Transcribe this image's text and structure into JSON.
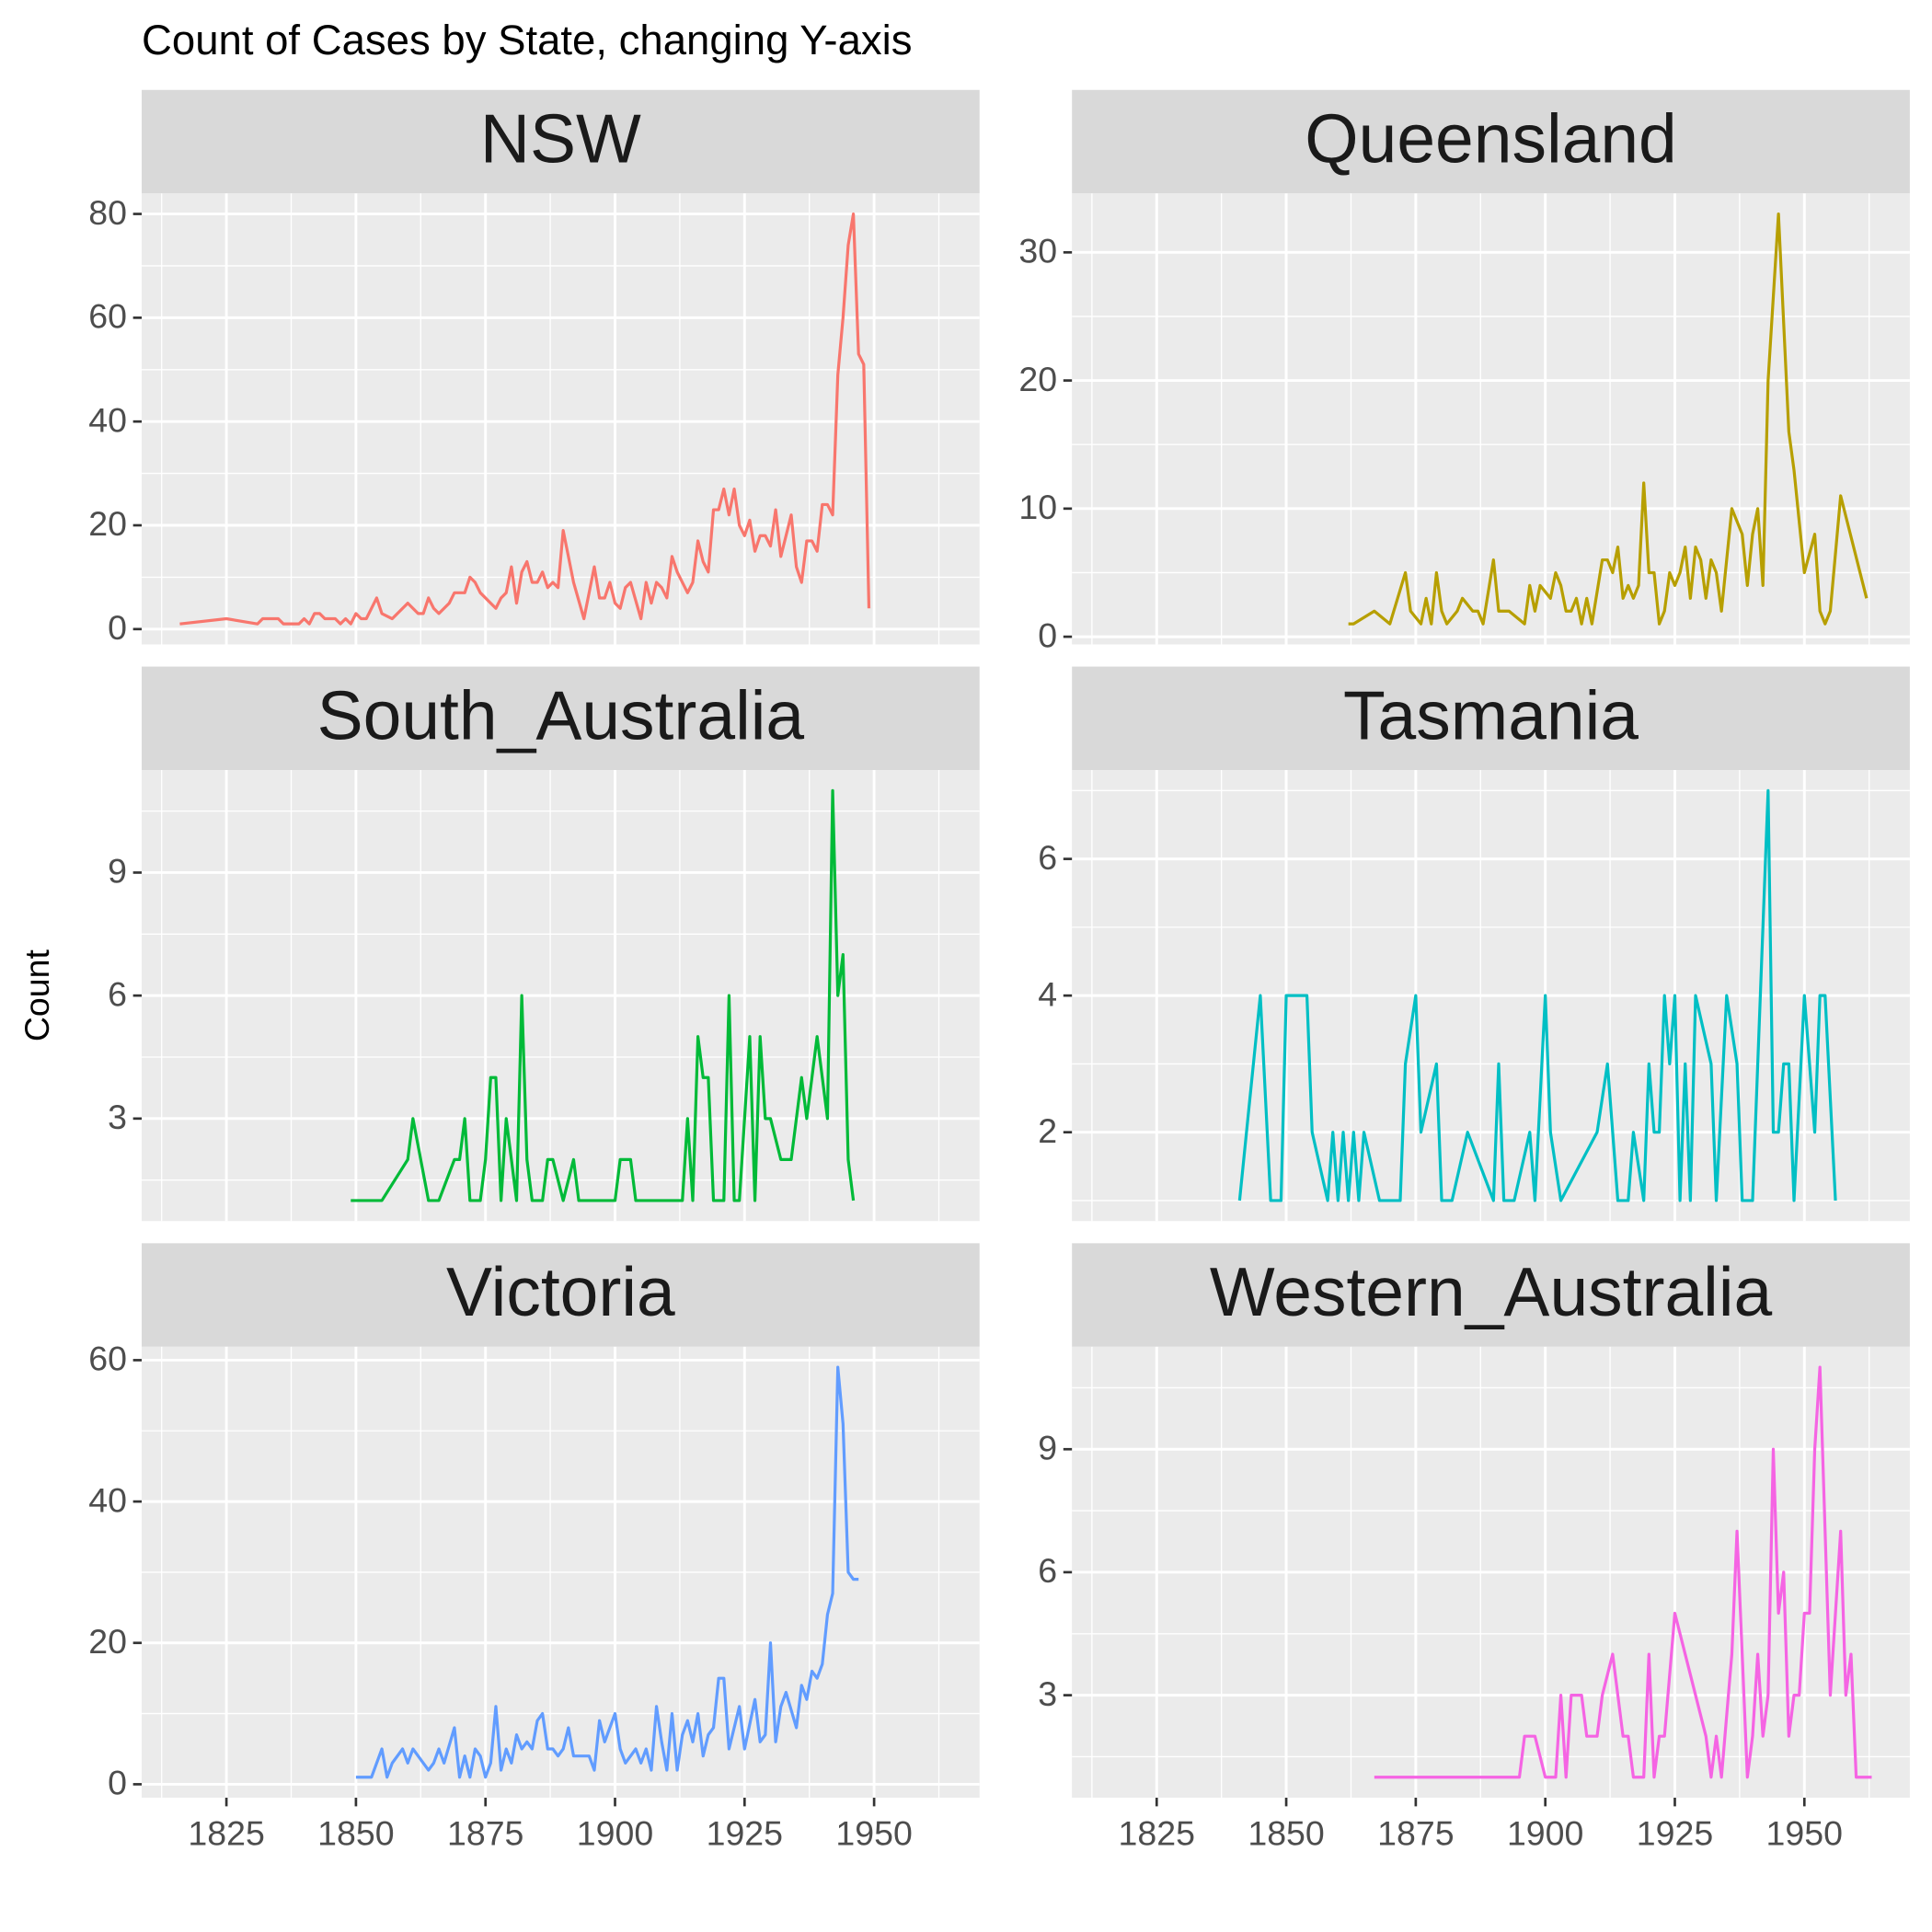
{
  "title": "Count of Cases by State, changing Y-axis",
  "ylabel": "Count",
  "chart_data": [
    {
      "type": "line",
      "title": "NSW",
      "color": "#F8766D",
      "x": [
        1816,
        1825,
        1831,
        1832,
        1835,
        1836,
        1839,
        1840,
        1841,
        1842,
        1843,
        1844,
        1846,
        1847,
        1848,
        1849,
        1850,
        1851,
        1852,
        1854,
        1855,
        1857,
        1859,
        1860,
        1862,
        1863,
        1864,
        1865,
        1866,
        1868,
        1869,
        1871,
        1872,
        1873,
        1874,
        1876,
        1877,
        1878,
        1879,
        1880,
        1881,
        1882,
        1883,
        1884,
        1885,
        1886,
        1887,
        1888,
        1889,
        1890,
        1891,
        1892,
        1894,
        1896,
        1897,
        1898,
        1899,
        1900,
        1901,
        1902,
        1903,
        1905,
        1906,
        1907,
        1908,
        1909,
        1910,
        1911,
        1912,
        1913,
        1914,
        1915,
        1916,
        1917,
        1918,
        1919,
        1920,
        1921,
        1922,
        1923,
        1924,
        1925,
        1926,
        1927,
        1928,
        1929,
        1930,
        1931,
        1932,
        1934,
        1935,
        1936,
        1937,
        1938,
        1939,
        1940,
        1941,
        1942,
        1943,
        1944,
        1945,
        1946,
        1947,
        1948,
        1949
      ],
      "values": [
        1,
        2,
        1,
        2,
        2,
        1,
        1,
        2,
        1,
        3,
        3,
        2,
        2,
        1,
        2,
        1,
        3,
        2,
        2,
        6,
        3,
        2,
        4,
        5,
        3,
        3,
        6,
        4,
        3,
        5,
        7,
        7,
        10,
        9,
        7,
        5,
        4,
        6,
        7,
        12,
        5,
        11,
        13,
        9,
        9,
        11,
        8,
        9,
        8,
        19,
        14,
        9,
        2,
        12,
        6,
        6,
        9,
        5,
        4,
        8,
        9,
        2,
        9,
        5,
        9,
        8,
        6,
        14,
        11,
        9,
        7,
        9,
        17,
        13,
        11,
        23,
        23,
        27,
        22,
        27,
        20,
        18,
        21,
        15,
        18,
        18,
        16,
        23,
        14,
        22,
        12,
        9,
        17,
        17,
        15,
        24,
        24,
        22,
        49,
        60,
        74,
        80,
        53,
        51,
        4
      ],
      "xlim": [
        1808.65,
        1970.35
      ],
      "xticks": [
        1825,
        1850,
        1875,
        1900,
        1925,
        1950
      ],
      "ylim": [
        -2.95,
        83.95
      ],
      "yticks": [
        0,
        20,
        40,
        60,
        80
      ]
    },
    {
      "type": "line",
      "title": "Queensland",
      "color": "#B79F00",
      "x": [
        1862,
        1863,
        1867,
        1870,
        1873,
        1874,
        1876,
        1877,
        1878,
        1879,
        1880,
        1881,
        1883,
        1884,
        1886,
        1887,
        1888,
        1890,
        1891,
        1893,
        1896,
        1897,
        1898,
        1899,
        1901,
        1902,
        1903,
        1904,
        1905,
        1906,
        1907,
        1908,
        1909,
        1911,
        1912,
        1913,
        1914,
        1915,
        1916,
        1917,
        1918,
        1919,
        1920,
        1921,
        1922,
        1923,
        1924,
        1925,
        1926,
        1927,
        1928,
        1929,
        1930,
        1931,
        1932,
        1933,
        1934,
        1936,
        1938,
        1939,
        1940,
        1941,
        1942,
        1943,
        1945,
        1947,
        1948,
        1950,
        1952,
        1953,
        1954,
        1955,
        1957,
        1962
      ],
      "values": [
        1,
        1,
        2,
        1,
        5,
        2,
        1,
        3,
        1,
        5,
        2,
        1,
        2,
        3,
        2,
        2,
        1,
        6,
        2,
        2,
        1,
        4,
        2,
        4,
        3,
        5,
        4,
        2,
        2,
        3,
        1,
        3,
        1,
        6,
        6,
        5,
        7,
        3,
        4,
        3,
        4,
        12,
        5,
        5,
        1,
        2,
        5,
        4,
        5,
        7,
        3,
        7,
        6,
        3,
        6,
        5,
        2,
        10,
        8,
        4,
        8,
        10,
        4,
        20,
        33,
        16,
        13,
        5,
        8,
        2,
        1,
        2,
        11,
        3
      ],
      "xlim": [
        1808.65,
        1970.35
      ],
      "xticks": [
        1825,
        1850,
        1875,
        1900,
        1925,
        1950
      ],
      "ylim": [
        -0.6,
        34.6
      ],
      "yticks": [
        0,
        10,
        20,
        30
      ]
    },
    {
      "type": "line",
      "title": "South_Australia",
      "color": "#00BA38",
      "x": [
        1849,
        1855,
        1860,
        1861,
        1864,
        1866,
        1869,
        1870,
        1871,
        1872,
        1874,
        1875,
        1876,
        1877,
        1878,
        1879,
        1880,
        1881,
        1882,
        1883,
        1884,
        1886,
        1887,
        1888,
        1890,
        1892,
        1893,
        1897,
        1900,
        1901,
        1903,
        1904,
        1913,
        1914,
        1915,
        1916,
        1917,
        1918,
        1919,
        1921,
        1922,
        1923,
        1924,
        1926,
        1927,
        1928,
        1929,
        1930,
        1932,
        1934,
        1936,
        1937,
        1939,
        1941,
        1942,
        1943,
        1944,
        1945,
        1946
      ],
      "values": [
        1,
        1,
        2,
        3,
        1,
        1,
        2,
        2,
        3,
        1,
        1,
        2,
        4,
        4,
        1,
        3,
        2,
        1,
        6,
        2,
        1,
        1,
        2,
        2,
        1,
        2,
        1,
        1,
        1,
        2,
        2,
        1,
        1,
        3,
        1,
        5,
        4,
        4,
        1,
        1,
        6,
        1,
        1,
        5,
        1,
        5,
        3,
        3,
        2,
        2,
        4,
        3,
        5,
        3,
        11,
        6,
        7,
        2,
        1
      ],
      "xlim": [
        1808.65,
        1970.35
      ],
      "xticks": [
        1825,
        1850,
        1875,
        1900,
        1925,
        1950
      ],
      "ylim": [
        0.5,
        11.5
      ],
      "yticks": [
        3,
        6,
        9
      ]
    },
    {
      "type": "line",
      "title": "Tasmania",
      "color": "#00BFC4",
      "x": [
        1841,
        1845,
        1847,
        1849,
        1850,
        1854,
        1855,
        1858,
        1859,
        1860,
        1861,
        1862,
        1863,
        1864,
        1865,
        1868,
        1872,
        1873,
        1875,
        1876,
        1879,
        1880,
        1882,
        1885,
        1890,
        1891,
        1892,
        1894,
        1897,
        1898,
        1900,
        1901,
        1903,
        1910,
        1912,
        1914,
        1916,
        1917,
        1919,
        1920,
        1921,
        1922,
        1923,
        1924,
        1925,
        1926,
        1927,
        1928,
        1929,
        1932,
        1933,
        1935,
        1937,
        1938,
        1940,
        1943,
        1944,
        1945,
        1946,
        1947,
        1948,
        1950,
        1952,
        1953,
        1954,
        1956
      ],
      "values": [
        1,
        4,
        1,
        1,
        4,
        4,
        2,
        1,
        2,
        1,
        2,
        1,
        2,
        1,
        2,
        1,
        1,
        3,
        4,
        2,
        3,
        1,
        1,
        2,
        1,
        3,
        1,
        1,
        2,
        1,
        4,
        2,
        1,
        2,
        3,
        1,
        1,
        2,
        1,
        3,
        2,
        2,
        4,
        3,
        4,
        1,
        3,
        1,
        4,
        3,
        1,
        4,
        3,
        1,
        1,
        7,
        2,
        2,
        3,
        3,
        1,
        4,
        2,
        4,
        4,
        1
      ],
      "xlim": [
        1808.65,
        1970.35
      ],
      "xticks": [
        1825,
        1850,
        1875,
        1900,
        1925,
        1950
      ],
      "ylim": [
        0.7,
        7.3
      ],
      "yticks": [
        2,
        4,
        6
      ]
    },
    {
      "type": "line",
      "title": "Victoria",
      "color": "#619CFF",
      "x": [
        1850,
        1853,
        1855,
        1856,
        1857,
        1859,
        1860,
        1861,
        1862,
        1864,
        1865,
        1866,
        1867,
        1869,
        1870,
        1871,
        1872,
        1873,
        1874,
        1875,
        1876,
        1877,
        1878,
        1879,
        1880,
        1881,
        1882,
        1883,
        1884,
        1885,
        1886,
        1887,
        1888,
        1889,
        1890,
        1891,
        1892,
        1895,
        1896,
        1897,
        1898,
        1900,
        1901,
        1902,
        1904,
        1905,
        1906,
        1907,
        1908,
        1909,
        1910,
        1911,
        1912,
        1913,
        1914,
        1915,
        1916,
        1917,
        1918,
        1919,
        1920,
        1921,
        1922,
        1924,
        1925,
        1927,
        1928,
        1929,
        1930,
        1931,
        1932,
        1933,
        1935,
        1936,
        1937,
        1938,
        1939,
        1940,
        1941,
        1942,
        1943,
        1944,
        1945,
        1946,
        1947
      ],
      "values": [
        1,
        1,
        5,
        1,
        3,
        5,
        3,
        5,
        4,
        2,
        3,
        5,
        3,
        8,
        1,
        4,
        1,
        5,
        4,
        1,
        3,
        11,
        2,
        5,
        3,
        7,
        5,
        6,
        5,
        9,
        10,
        5,
        5,
        4,
        5,
        8,
        4,
        4,
        2,
        9,
        6,
        10,
        5,
        3,
        5,
        3,
        5,
        2,
        11,
        6,
        2,
        10,
        2,
        7,
        9,
        6,
        10,
        4,
        7,
        8,
        15,
        15,
        5,
        11,
        5,
        12,
        6,
        7,
        20,
        6,
        11,
        13,
        8,
        14,
        12,
        16,
        15,
        17,
        24,
        27,
        59,
        51,
        30,
        29,
        29
      ],
      "xlim": [
        1808.65,
        1970.35
      ],
      "xticks": [
        1825,
        1850,
        1875,
        1900,
        1925,
        1950
      ],
      "ylim": [
        -1.9,
        61.9
      ],
      "yticks": [
        0,
        20,
        40,
        60
      ]
    },
    {
      "type": "line",
      "title": "Western_Australia",
      "color": "#F564E3",
      "x": [
        1867,
        1895,
        1896,
        1898,
        1900,
        1902,
        1903,
        1904,
        1905,
        1907,
        1908,
        1910,
        1911,
        1913,
        1915,
        1916,
        1917,
        1919,
        1920,
        1921,
        1922,
        1923,
        1925,
        1927,
        1931,
        1932,
        1933,
        1934,
        1936,
        1937,
        1939,
        1940,
        1941,
        1942,
        1943,
        1944,
        1945,
        1946,
        1947,
        1948,
        1949,
        1950,
        1951,
        1952,
        1953,
        1954,
        1955,
        1956,
        1957,
        1958,
        1959,
        1960,
        1962,
        1963
      ],
      "values": [
        1,
        1,
        2,
        2,
        1,
        1,
        3,
        1,
        3,
        3,
        2,
        2,
        3,
        4,
        2,
        2,
        1,
        1,
        4,
        1,
        2,
        2,
        5,
        4,
        2,
        1,
        2,
        1,
        4,
        7,
        1,
        2,
        4,
        2,
        3,
        9,
        5,
        6,
        2,
        3,
        3,
        5,
        5,
        9,
        11,
        7,
        3,
        5,
        7,
        3,
        4,
        1,
        1,
        1
      ],
      "xlim": [
        1808.65,
        1970.35
      ],
      "xticks": [
        1825,
        1850,
        1875,
        1900,
        1925,
        1950
      ],
      "ylim": [
        0.5,
        11.5
      ],
      "yticks": [
        3,
        6,
        9
      ]
    }
  ]
}
